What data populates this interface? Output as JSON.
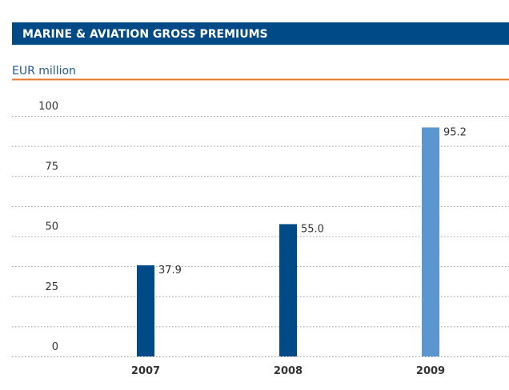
{
  "chart_data": {
    "type": "bar",
    "title": "MARINE & AVIATION GROSS PREMIUMS",
    "subtitle": "EUR million",
    "categories": [
      "2007",
      "2008",
      "2009"
    ],
    "values": [
      37.9,
      55.0,
      95.2
    ],
    "value_labels": [
      "37.9",
      "55.0",
      "95.2"
    ],
    "colors": [
      "#004b87",
      "#004b87",
      "#5b96d0"
    ],
    "ylim": [
      0,
      100
    ],
    "yticks": [
      0,
      25,
      50,
      75,
      100
    ],
    "minor_yticks": [
      12.5,
      37.5,
      62.5,
      87.5
    ],
    "grid": true
  }
}
